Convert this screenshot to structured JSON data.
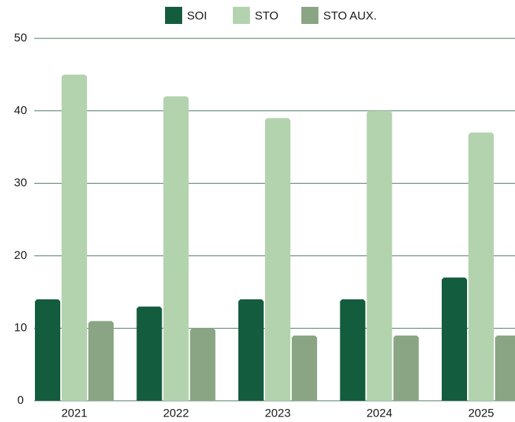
{
  "chart_data": {
    "type": "bar",
    "categories": [
      "2021",
      "2022",
      "2023",
      "2024",
      "2025"
    ],
    "series": [
      {
        "name": "SOI",
        "color": "#145c3e",
        "values": [
          14,
          13,
          14,
          14,
          17
        ]
      },
      {
        "name": "STO",
        "color": "#b3d3ae",
        "values": [
          45,
          42,
          39,
          40,
          37
        ]
      },
      {
        "name": "STO AUX.",
        "color": "#8aa583",
        "values": [
          11,
          10,
          9,
          9,
          9
        ]
      }
    ],
    "ylim": [
      0,
      50
    ],
    "yticks": [
      0,
      10,
      20,
      30,
      40,
      50
    ],
    "grid": true,
    "legend": "top"
  }
}
